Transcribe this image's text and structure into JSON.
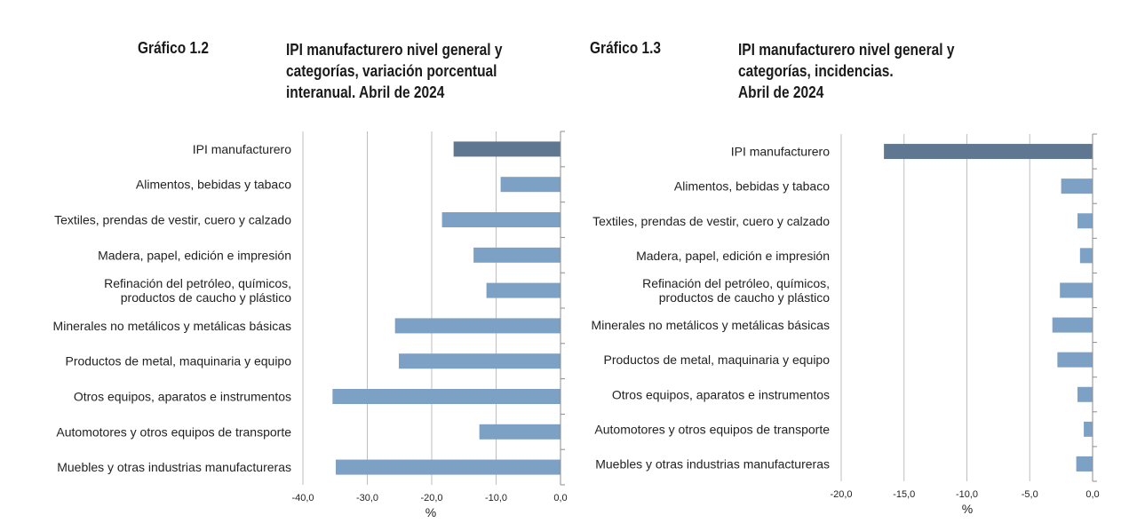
{
  "charts": [
    {
      "id": "left",
      "number": "Gráfico 1.2",
      "title_lines": [
        "IPI manufacturero nivel general y",
        "categorías, variación porcentual",
        "interanual. Abril de 2024"
      ]
    },
    {
      "id": "right",
      "number": "Gráfico 1.3",
      "title_lines": [
        "IPI manufacturero nivel general y",
        "categorías, incidencias.",
        "Abril de 2024"
      ]
    }
  ],
  "chart_data": [
    {
      "type": "bar",
      "orientation": "horizontal",
      "title": "IPI manufacturero nivel general y categorías, variación porcentual interanual. Abril de 2024",
      "categories": [
        [
          "IPI manufacturero"
        ],
        [
          "Alimentos, bebidas y tabaco"
        ],
        [
          "Textiles, prendas de vestir, cuero y calzado"
        ],
        [
          "Madera, papel, edición e impresión"
        ],
        [
          "Refinación del petróleo, químicos,",
          "productos de caucho y plástico"
        ],
        [
          "Minerales no metálicos y metálicas básicas"
        ],
        [
          "Productos de metal, maquinaria y equipo"
        ],
        [
          "Otros equipos, aparatos e instrumentos"
        ],
        [
          "Automotores y otros equipos de transporte"
        ],
        [
          "Muebles y otras industrias manufactureras"
        ]
      ],
      "values": [
        -16.6,
        -9.3,
        -18.4,
        -13.5,
        -11.5,
        -25.7,
        -25.1,
        -35.4,
        -12.6,
        -34.9
      ],
      "xlim": [
        -40,
        0
      ],
      "ticks": [
        -40,
        -30,
        -20,
        -10,
        0
      ],
      "tick_labels": [
        "-40,0",
        "-30,0",
        "-20,0",
        "-10,0",
        "0,0"
      ],
      "xlabel": "%",
      "grid": true,
      "colors": {
        "highlight": "#5f7790",
        "bar": "#7da1c4",
        "grid": "#bfbfbf",
        "axis": "#8c8c8c"
      }
    },
    {
      "type": "bar",
      "orientation": "horizontal",
      "title": "IPI manufacturero nivel general y categorías, incidencias. Abril de 2024",
      "categories": [
        [
          "IPI manufacturero"
        ],
        [
          "Alimentos, bebidas y tabaco"
        ],
        [
          "Textiles, prendas de vestir, cuero y calzado"
        ],
        [
          "Madera, papel, edición e impresión"
        ],
        [
          "Refinación del petróleo, químicos,",
          "productos de caucho y plástico"
        ],
        [
          "Minerales no metálicos y metálicas básicas"
        ],
        [
          "Productos de metal, maquinaria y equipo"
        ],
        [
          "Otros equipos, aparatos e instrumentos"
        ],
        [
          "Automotores y otros equipos de transporte"
        ],
        [
          "Muebles y otras industrias manufactureras"
        ]
      ],
      "values": [
        -16.6,
        -2.5,
        -1.2,
        -1.0,
        -2.6,
        -3.2,
        -2.8,
        -1.2,
        -0.7,
        -1.3
      ],
      "xlim": [
        -20,
        0
      ],
      "ticks": [
        -20,
        -15,
        -10,
        -5,
        0
      ],
      "tick_labels": [
        "-20,0",
        "-15,0",
        "-10,0",
        "-5,0",
        "0,0"
      ],
      "xlabel": "%",
      "grid": true,
      "colors": {
        "highlight": "#5f7790",
        "bar": "#7da1c4",
        "grid": "#bfbfbf",
        "axis": "#8c8c8c"
      }
    }
  ]
}
